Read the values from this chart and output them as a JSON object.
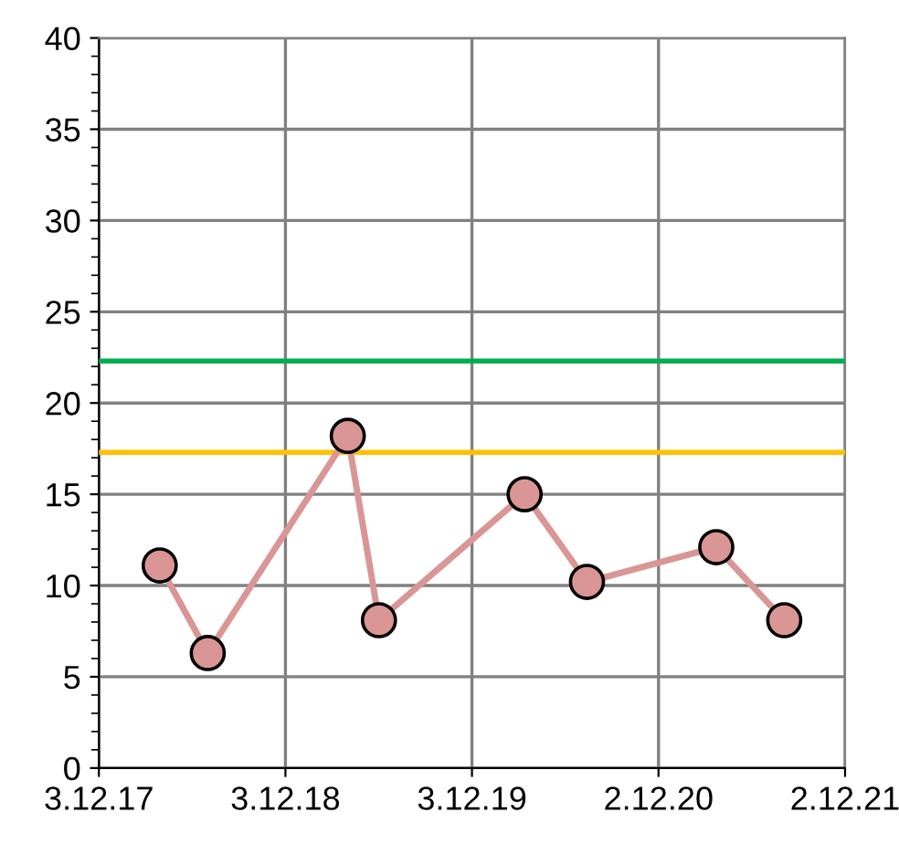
{
  "chart_data": {
    "type": "line",
    "x": [
      "2018-04-01",
      "2018-07-04",
      "2019-04-04",
      "2019-06-04",
      "2020-03-15",
      "2020-07-15",
      "2021-03-25",
      "2021-08-05"
    ],
    "series": [
      {
        "color": "#d99694",
        "values": [
          11.1,
          6.3,
          18.2,
          8.1,
          15.0,
          10.2,
          12.1,
          8.1
        ]
      }
    ],
    "xlim": [
      "2017-12-03",
      "2021-12-02"
    ],
    "xticks": [
      {
        "value": "2017-12-03",
        "label": "3.12.17"
      },
      {
        "value": "2018-12-03",
        "label": "3.12.18"
      },
      {
        "value": "2019-12-03",
        "label": "3.12.19"
      },
      {
        "value": "2020-12-02",
        "label": "2.12.20"
      },
      {
        "value": "2021-12-02",
        "label": "2.12.21"
      }
    ],
    "ylim": [
      0,
      40
    ],
    "yticks": [
      0,
      5,
      10,
      15,
      20,
      25,
      30,
      35,
      40
    ],
    "ref_lines": [
      {
        "axis": "y",
        "value": 22.3,
        "color": "#00b050"
      },
      {
        "axis": "y",
        "value": 17.3,
        "color": "#ffc000"
      }
    ],
    "grid": true,
    "marker": "circle",
    "line_style": "solid"
  }
}
